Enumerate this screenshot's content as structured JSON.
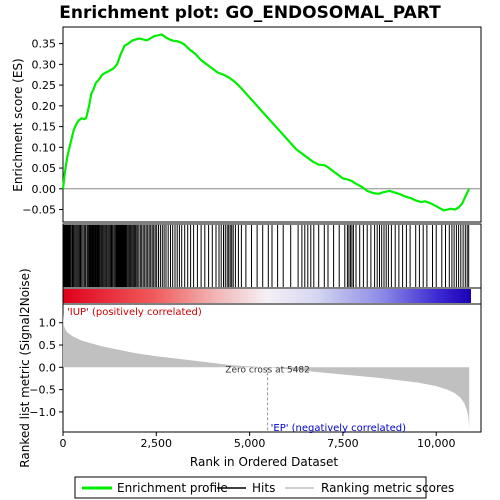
{
  "chart_data": {
    "type": "line",
    "title": "Enrichment plot: GO_ENDOSOMAL_PART",
    "es_panel": {
      "ylabel": "Enrichment score (ES)",
      "ylim": [
        -0.08,
        0.39
      ],
      "yticks": [
        -0.05,
        0.0,
        0.05,
        0.1,
        0.15,
        0.2,
        0.25,
        0.3,
        0.35
      ],
      "ytick_labels": [
        "−0.05",
        "0.00",
        "0.05",
        "0.10",
        "0.15",
        "0.20",
        "0.25",
        "0.30",
        "0.35"
      ],
      "series": [
        {
          "name": "Enrichment profile",
          "color": "#00ee00",
          "x": [
            0,
            50,
            120,
            200,
            280,
            350,
            420,
            500,
            560,
            620,
            700,
            760,
            820,
            880,
            950,
            1050,
            1150,
            1250,
            1350,
            1450,
            1550,
            1650,
            1750,
            1850,
            1950,
            2050,
            2150,
            2250,
            2350,
            2450,
            2550,
            2650,
            2750,
            2850,
            2950,
            3050,
            3150,
            3250,
            3400,
            3550,
            3700,
            3850,
            4000,
            4150,
            4300,
            4450,
            4600,
            4750,
            4900,
            5050,
            5200,
            5350,
            5500,
            5650,
            5800,
            5950,
            6100,
            6250,
            6400,
            6550,
            6700,
            6850,
            7000,
            7100,
            7200,
            7350,
            7500,
            7650,
            7750,
            7850,
            8000,
            8150,
            8300,
            8450,
            8600,
            8750,
            8850,
            9000,
            9150,
            9300,
            9450,
            9600,
            9700,
            9850,
            10000,
            10100,
            10200,
            10300,
            10400,
            10500,
            10600,
            10700,
            10800,
            10880
          ],
          "y": [
            0.0,
            0.04,
            0.08,
            0.11,
            0.14,
            0.155,
            0.165,
            0.17,
            0.168,
            0.17,
            0.2,
            0.23,
            0.24,
            0.255,
            0.262,
            0.275,
            0.28,
            0.285,
            0.29,
            0.3,
            0.325,
            0.345,
            0.35,
            0.357,
            0.36,
            0.362,
            0.36,
            0.358,
            0.363,
            0.368,
            0.37,
            0.372,
            0.365,
            0.36,
            0.357,
            0.356,
            0.353,
            0.348,
            0.335,
            0.325,
            0.31,
            0.3,
            0.29,
            0.28,
            0.275,
            0.268,
            0.258,
            0.245,
            0.23,
            0.215,
            0.2,
            0.185,
            0.17,
            0.155,
            0.14,
            0.125,
            0.11,
            0.095,
            0.085,
            0.075,
            0.065,
            0.058,
            0.057,
            0.052,
            0.045,
            0.035,
            0.025,
            0.022,
            0.018,
            0.012,
            0.005,
            -0.005,
            -0.01,
            -0.012,
            -0.008,
            -0.005,
            -0.008,
            -0.012,
            -0.018,
            -0.022,
            -0.028,
            -0.032,
            -0.03,
            -0.035,
            -0.042,
            -0.047,
            -0.052,
            -0.05,
            -0.048,
            -0.05,
            -0.045,
            -0.035,
            -0.015,
            0.0
          ]
        }
      ]
    },
    "hits_panel": {
      "legend_label": "Hits",
      "color": "#000000",
      "positions": [
        5,
        18,
        30,
        45,
        60,
        75,
        95,
        115,
        135,
        160,
        185,
        210,
        240,
        265,
        290,
        320,
        350,
        380,
        410,
        440,
        470,
        500,
        535,
        570,
        600,
        640,
        670,
        700,
        720,
        740,
        760,
        780,
        800,
        820,
        840,
        860,
        880,
        900,
        925,
        950,
        975,
        1000,
        1030,
        1060,
        1090,
        1120,
        1150,
        1180,
        1210,
        1240,
        1270,
        1300,
        1330,
        1360,
        1390,
        1420,
        1440,
        1460,
        1480,
        1500,
        1520,
        1540,
        1560,
        1580,
        1600,
        1620,
        1640,
        1660,
        1680,
        1700,
        1720,
        1750,
        1780,
        1810,
        1840,
        1870,
        1900,
        1930,
        1960,
        1990,
        2030,
        2070,
        2110,
        2150,
        2190,
        2230,
        2270,
        2310,
        2350,
        2390,
        2430,
        2470,
        2510,
        2560,
        2610,
        2660,
        2710,
        2760,
        2820,
        2880,
        2940,
        3000,
        3060,
        3120,
        3180,
        3260,
        3340,
        3420,
        3500,
        3600,
        3700,
        3800,
        3900,
        4000,
        4100,
        4180,
        4240,
        4300,
        4350,
        4400,
        4440,
        4480,
        4520,
        4560,
        4620,
        4700,
        4780,
        4900,
        5050,
        5200,
        5350,
        5500,
        5600,
        5750,
        5900,
        6100,
        6300,
        6400,
        6480,
        6560,
        6640,
        6720,
        6850,
        7000,
        7100,
        7250,
        7400,
        7550,
        7620,
        7660,
        7700,
        7740,
        7780,
        7850,
        7950,
        8050,
        8150,
        8250,
        8350,
        8420,
        8480,
        8540,
        8600,
        8660,
        8720,
        8800,
        8900,
        9000,
        9100,
        9200,
        9300,
        9450,
        9550,
        9650,
        9750,
        9900,
        10000,
        10150,
        10250,
        10350,
        10420,
        10480,
        10540,
        10600,
        10660,
        10720,
        10780,
        10830,
        10870
      ]
    },
    "metric_panel": {
      "ylabel": "Ranked list metric (Signal2Noise)",
      "xlabel": "Rank in Ordered Dataset",
      "ylim": [
        -1.45,
        1.42
      ],
      "yticks": [
        -1.0,
        -0.5,
        0.0,
        0.5,
        1.0
      ],
      "ytick_labels": [
        "−1.0",
        "−0.5",
        "0.0",
        "0.5",
        "1.0"
      ],
      "xlim": [
        0,
        11200
      ],
      "xticks": [
        0,
        2500,
        5000,
        7500,
        10000
      ],
      "xtick_labels": [
        "0",
        "2,500",
        "5,000",
        "7,500",
        "10,000"
      ],
      "legend_label": "Ranking metric scores",
      "fill_color": "#c0c0c0",
      "x": [
        0,
        20,
        60,
        120,
        250,
        500,
        1000,
        1500,
        2000,
        2500,
        3000,
        3500,
        4000,
        4500,
        5000,
        5482,
        6000,
        6500,
        7000,
        7500,
        8000,
        8500,
        9000,
        9500,
        10000,
        10300,
        10500,
        10650,
        10750,
        10820,
        10860,
        10885
      ],
      "y": [
        1.22,
        0.95,
        0.85,
        0.78,
        0.7,
        0.6,
        0.48,
        0.39,
        0.31,
        0.25,
        0.2,
        0.15,
        0.1,
        0.05,
        0.02,
        0.0,
        -0.04,
        -0.08,
        -0.12,
        -0.16,
        -0.2,
        -0.24,
        -0.29,
        -0.34,
        -0.42,
        -0.5,
        -0.58,
        -0.68,
        -0.8,
        -0.95,
        -1.1,
        -1.35
      ],
      "zero_cross_label": "Zero cross at 5482",
      "zero_cross_rank": 5482,
      "positive_label": "'IUP' (positively correlated)",
      "negative_label": "'EP' (negatively correlated)"
    },
    "n_genes": 10880,
    "legend": {
      "placement": "bottom",
      "items": [
        "Enrichment profile",
        "Hits",
        "Ranking metric scores"
      ]
    }
  }
}
